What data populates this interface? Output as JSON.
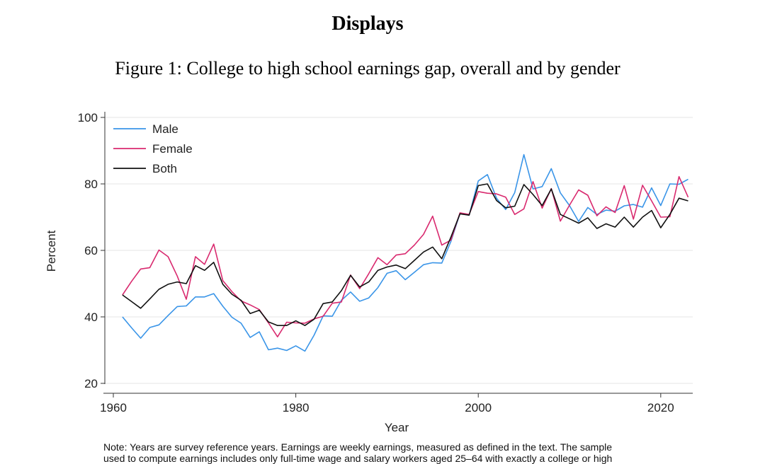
{
  "heading": "Displays",
  "caption": "Figure 1: College to high school earnings gap, overall and by gender",
  "note_lines": [
    "Note: Years are survey reference years. Earnings are weekly earnings, measured as defined in the text. The sample",
    "used to compute earnings includes only full-time wage and salary workers aged 25–64 with exactly a college or high"
  ],
  "chart_data": {
    "type": "line",
    "title": "",
    "xlabel": "Year",
    "ylabel": "Percent",
    "xlim": [
      1960,
      2023
    ],
    "ylim": [
      20,
      100
    ],
    "xticks": [
      1960,
      1980,
      2000,
      2020
    ],
    "yticks": [
      20,
      40,
      60,
      80,
      100
    ],
    "grid": true,
    "legend": "top-left",
    "x": [
      1961,
      1962,
      1963,
      1964,
      1965,
      1966,
      1967,
      1968,
      1969,
      1970,
      1971,
      1972,
      1973,
      1974,
      1975,
      1976,
      1977,
      1978,
      1979,
      1980,
      1981,
      1982,
      1983,
      1984,
      1985,
      1986,
      1987,
      1988,
      1989,
      1990,
      1991,
      1992,
      1993,
      1994,
      1995,
      1996,
      1997,
      1998,
      1999,
      2000,
      2001,
      2002,
      2003,
      2004,
      2005,
      2006,
      2007,
      2008,
      2009,
      2010,
      2011,
      2012,
      2013,
      2014,
      2015,
      2016,
      2017,
      2018,
      2019,
      2020,
      2021,
      2022,
      2023
    ],
    "series": [
      {
        "name": "Male",
        "color": "#3a95e8",
        "values": [
          40,
          36.7,
          33.6,
          36.8,
          37.6,
          40.4,
          43.1,
          43.3,
          46,
          46,
          47,
          43.2,
          39.9,
          38.1,
          33.8,
          35.5,
          30.1,
          30.6,
          29.9,
          31.3,
          29.7,
          34.5,
          40.3,
          40.2,
          45,
          47.5,
          44.7,
          45.7,
          48.8,
          53.1,
          53.9,
          51.2,
          53.4,
          55.7,
          56.3,
          56.2,
          62.7,
          71.1,
          70.6,
          80.9,
          82.8,
          75.7,
          72.3,
          77.4,
          88.8,
          78.5,
          79.2,
          84.6,
          77.3,
          73.5,
          68.7,
          72.9,
          70.8,
          72.1,
          71.8,
          73.4,
          73.8,
          73,
          78.8,
          73.5,
          80,
          79.9,
          81.4
        ]
      },
      {
        "name": "Female",
        "color": "#d92a6f",
        "values": [
          46.6,
          50.7,
          54.4,
          54.8,
          60.1,
          58.1,
          52.3,
          45.3,
          58.1,
          55.8,
          61.9,
          50.9,
          47.6,
          44.8,
          43.6,
          42.2,
          38.2,
          34,
          38.4,
          38.2,
          38.1,
          39.4,
          40.2,
          44.1,
          44.5,
          52.6,
          48.5,
          53,
          57.8,
          55.7,
          58.6,
          59,
          61.6,
          64.8,
          70.3,
          61.6,
          63.1,
          71.3,
          70.8,
          77.7,
          77.2,
          77,
          76,
          70.8,
          72.5,
          80.7,
          72.7,
          78.6,
          68.8,
          73.6,
          78.2,
          76.6,
          70.4,
          73.1,
          71.4,
          79.5,
          69.4,
          79.6,
          74.9,
          70,
          70.1,
          82.2,
          76
        ]
      },
      {
        "name": "Both",
        "color": "#111111",
        "values": [
          46.6,
          44.6,
          42.6,
          45.4,
          48.3,
          49.8,
          50.5,
          50,
          55.4,
          54,
          56.4,
          49.8,
          46.8,
          45,
          41,
          42,
          38.5,
          37.4,
          37.4,
          38.8,
          37.4,
          39.3,
          44,
          44.5,
          47.9,
          52.5,
          49,
          50.5,
          54,
          55,
          55.6,
          54.5,
          57,
          59.5,
          61,
          57.5,
          64,
          71,
          70.6,
          79.5,
          80,
          75,
          72.8,
          73.3,
          79.8,
          76.8,
          73.5,
          78.5,
          70.8,
          69.5,
          68.2,
          69.8,
          66.6,
          68,
          67,
          70,
          67,
          70,
          72,
          66.8,
          70.8,
          75.7,
          74.9
        ]
      }
    ]
  }
}
